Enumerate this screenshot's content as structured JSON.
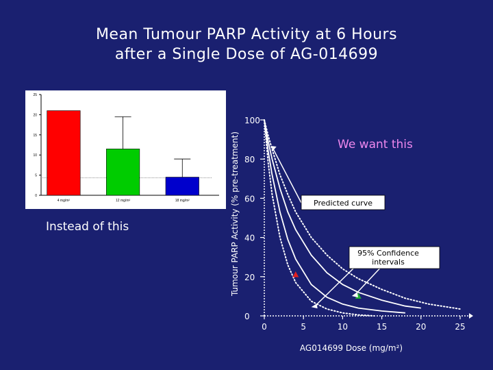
{
  "slide": {
    "title_line1": "Mean Tumour PARP Activity at 6 Hours",
    "title_line2": "after a Single Dose of AG-014699",
    "caption_instead": "Instead of this",
    "caption_want": "We want this"
  },
  "colors": {
    "background": "#1a2070",
    "bar_red": "#ff0000",
    "bar_green": "#00cc00",
    "bar_blue": "#0000cc",
    "marker_red": "#e02020",
    "marker_green": "#20b030",
    "want_text": "#ee88ee"
  },
  "chart_data": [
    {
      "type": "bar",
      "categories": [
        "4 mg/m²",
        "12 mg/m²",
        "18 mg/m²"
      ],
      "values": [
        21,
        11.5,
        4.5
      ],
      "errors": [
        0,
        8,
        4.5
      ],
      "ylim": [
        0,
        25
      ],
      "yticks": [
        "0",
        "5",
        "10",
        "15",
        "20",
        "25"
      ],
      "baseline_note": "(pre-treatment level shown as reference line)",
      "grid": false
    },
    {
      "type": "line",
      "ylabel": "Tumour PARP Activity (% pre-treatment)",
      "xlabel": "AG014699 Dose (mg/m²)",
      "xlim": [
        0,
        25
      ],
      "ylim": [
        0,
        100
      ],
      "xticks": [
        "0",
        "5",
        "10",
        "15",
        "20",
        "25"
      ],
      "yticks": [
        "0",
        "20",
        "40",
        "60",
        "80",
        "100"
      ],
      "series": [
        {
          "name": "Predicted curve",
          "style": "solid",
          "x": [
            0,
            0.5,
            1,
            2,
            3,
            4,
            6,
            8,
            10,
            12,
            15,
            18
          ],
          "y": [
            100,
            84,
            72,
            53,
            39,
            29,
            16,
            9.5,
            6,
            4,
            2.5,
            1.5
          ]
        },
        {
          "style": "solid",
          "x": [
            0,
            0.5,
            1,
            2,
            3,
            4,
            6,
            8,
            10,
            12,
            15,
            18,
            20
          ],
          "y": [
            100,
            89,
            80,
            65,
            53,
            44,
            31,
            22,
            16,
            12,
            8,
            5,
            4
          ]
        },
        {
          "style": "dotted",
          "x": [
            0,
            0.5,
            1,
            2,
            3,
            4,
            6,
            8,
            10,
            12,
            14
          ],
          "y": [
            100,
            78,
            62,
            40,
            26,
            17,
            7.5,
            3.5,
            1.5,
            0.5,
            0
          ]
        },
        {
          "style": "dotted",
          "x": [
            0,
            0.5,
            1,
            2,
            3,
            4,
            6,
            8,
            10,
            12,
            15,
            18,
            21,
            25
          ],
          "y": [
            100,
            92,
            85,
            72,
            62,
            53,
            40,
            31,
            24,
            19,
            13.5,
            9,
            6,
            3.5
          ]
        }
      ],
      "points": [
        {
          "x": 4,
          "y": 21,
          "color": "marker_red"
        },
        {
          "x": 12,
          "y": 10,
          "color": "marker_green"
        }
      ],
      "annotations": [
        {
          "text": "Predicted curve",
          "arrow_to_x": 0.5
        },
        {
          "text": "95% Confidence intervals",
          "arrow_to_x_1": 6,
          "arrow_to_x_2": 11
        }
      ]
    }
  ]
}
